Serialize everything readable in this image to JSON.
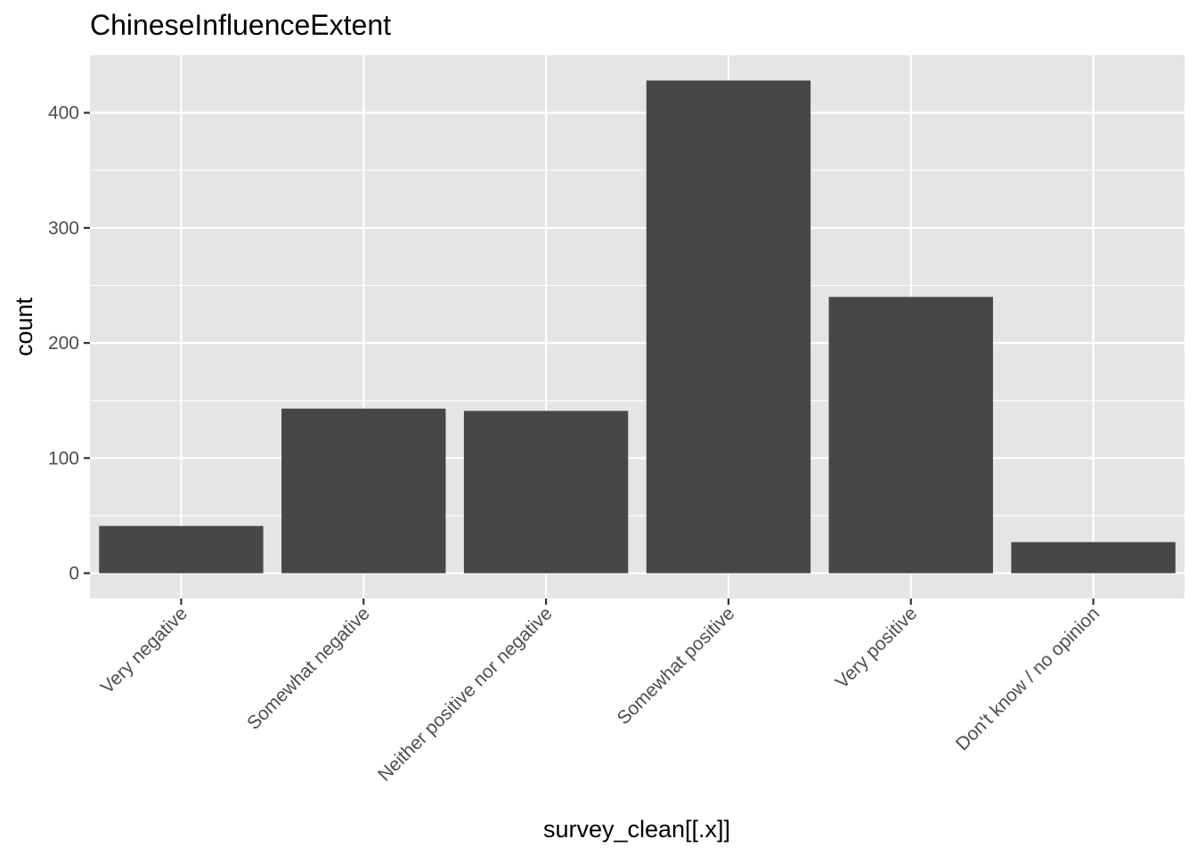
{
  "chart_data": {
    "type": "bar",
    "title": "ChineseInfluenceExtent",
    "xlabel": "survey_clean[[.x]]",
    "ylabel": "count",
    "categories": [
      "Very negative",
      "Somewhat negative",
      "Neither positive nor negative",
      "Somewhat positive",
      "Very positive",
      "Don't know / no opinion"
    ],
    "values": [
      41,
      143,
      141,
      428,
      240,
      27
    ],
    "ylim": [
      -22,
      450
    ],
    "yticks": [
      0,
      100,
      200,
      300,
      400
    ],
    "ytick_labels": [
      "0",
      "100",
      "200",
      "300",
      "400"
    ],
    "grid": true,
    "legend": "none",
    "colors": {
      "bar": "#474747",
      "panel": "#e5e5e5",
      "grid": "#ffffff",
      "tick_text": "#4d4d4d",
      "tick_mark": "#333333"
    }
  }
}
